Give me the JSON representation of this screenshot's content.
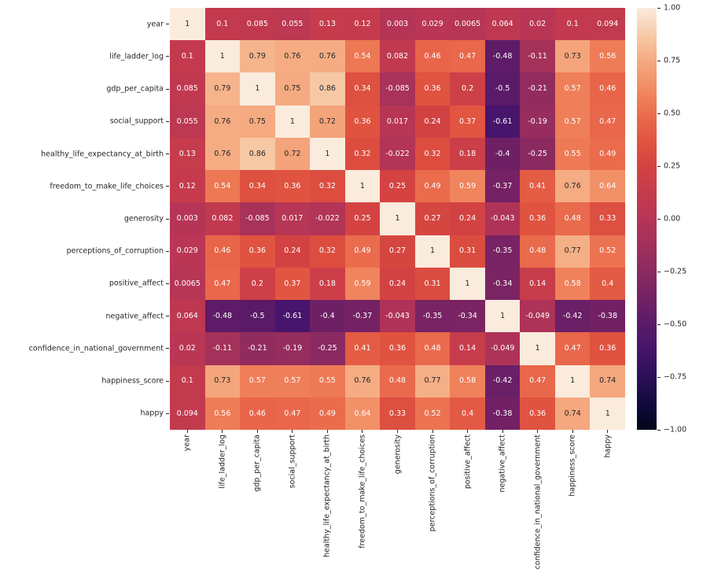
{
  "figure": {
    "background": "#FFFFFF"
  },
  "chart_data": {
    "type": "heatmap",
    "title": "",
    "description": "Correlation matrix heatmap with annotated correlation coefficients",
    "variables": [
      "year",
      "life_ladder_log",
      "gdp_per_capita",
      "social_support",
      "healthy_life_expectancy_at_birth",
      "freedom_to_make_life_choices",
      "generosity",
      "perceptions_of_corruption",
      "positive_affect",
      "negative_affect",
      "confidence_in_national_government",
      "happiness_score",
      "happy"
    ],
    "matrix": [
      [
        "1",
        "0.1",
        "0.085",
        "0.055",
        "0.13",
        "0.12",
        "0.003",
        "0.029",
        "0.0065",
        "0.064",
        "0.02",
        "0.1",
        "0.094"
      ],
      [
        "0.1",
        "1",
        "0.79",
        "0.76",
        "0.76",
        "0.54",
        "0.082",
        "0.46",
        "0.47",
        "-0.48",
        "-0.11",
        "0.73",
        "0.56"
      ],
      [
        "0.085",
        "0.79",
        "1",
        "0.75",
        "0.86",
        "0.34",
        "-0.085",
        "0.36",
        "0.2",
        "-0.5",
        "-0.21",
        "0.57",
        "0.46"
      ],
      [
        "0.055",
        "0.76",
        "0.75",
        "1",
        "0.72",
        "0.36",
        "0.017",
        "0.24",
        "0.37",
        "-0.61",
        "-0.19",
        "0.57",
        "0.47"
      ],
      [
        "0.13",
        "0.76",
        "0.86",
        "0.72",
        "1",
        "0.32",
        "-0.022",
        "0.32",
        "0.18",
        "-0.4",
        "-0.25",
        "0.55",
        "0.49"
      ],
      [
        "0.12",
        "0.54",
        "0.34",
        "0.36",
        "0.32",
        "1",
        "0.25",
        "0.49",
        "0.59",
        "-0.37",
        "0.41",
        "0.76",
        "0.64"
      ],
      [
        "0.003",
        "0.082",
        "-0.085",
        "0.017",
        "-0.022",
        "0.25",
        "1",
        "0.27",
        "0.24",
        "-0.043",
        "0.36",
        "0.48",
        "0.33"
      ],
      [
        "0.029",
        "0.46",
        "0.36",
        "0.24",
        "0.32",
        "0.49",
        "0.27",
        "1",
        "0.31",
        "-0.35",
        "0.48",
        "0.77",
        "0.52"
      ],
      [
        "0.0065",
        "0.47",
        "0.2",
        "0.37",
        "0.18",
        "0.59",
        "0.24",
        "0.31",
        "1",
        "-0.34",
        "0.14",
        "0.58",
        "0.4"
      ],
      [
        "0.064",
        "-0.48",
        "-0.5",
        "-0.61",
        "-0.4",
        "-0.37",
        "-0.043",
        "-0.35",
        "-0.34",
        "1",
        "-0.049",
        "-0.42",
        "-0.38"
      ],
      [
        "0.02",
        "-0.11",
        "-0.21",
        "-0.19",
        "-0.25",
        "0.41",
        "0.36",
        "0.48",
        "0.14",
        "-0.049",
        "1",
        "0.47",
        "0.36"
      ],
      [
        "0.1",
        "0.73",
        "0.57",
        "0.57",
        "0.55",
        "0.76",
        "0.48",
        "0.77",
        "0.58",
        "-0.42",
        "0.47",
        "1",
        "0.74"
      ],
      [
        "0.094",
        "0.56",
        "0.46",
        "0.47",
        "0.49",
        "0.64",
        "0.33",
        "0.52",
        "0.4",
        "-0.38",
        "0.36",
        "0.74",
        "1"
      ]
    ],
    "vmin": -1,
    "vmax": 1,
    "colormap": {
      "name": "rocket",
      "stops": [
        [
          0.0,
          "#03051A"
        ],
        [
          0.06,
          "#10093C"
        ],
        [
          0.125,
          "#2C1059"
        ],
        [
          0.195,
          "#47156B"
        ],
        [
          0.25,
          "#5A1A68"
        ],
        [
          0.3,
          "#6E2065"
        ],
        [
          0.33,
          "#7A2463"
        ],
        [
          0.375,
          "#8B2A61"
        ],
        [
          0.445,
          "#A4315A"
        ],
        [
          0.5,
          "#B63556"
        ],
        [
          0.55,
          "#C33A4E"
        ],
        [
          0.6,
          "#CE4047"
        ],
        [
          0.625,
          "#D44341"
        ],
        [
          0.68,
          "#E05340"
        ],
        [
          0.73,
          "#E86549"
        ],
        [
          0.775,
          "#EE7A55"
        ],
        [
          0.82,
          "#F29067"
        ],
        [
          0.88,
          "#F5AC83"
        ],
        [
          0.93,
          "#F7C8A4"
        ],
        [
          1.0,
          "#FAEBDD"
        ]
      ]
    },
    "annotation_text_colors": {
      "dark": "#262626",
      "light": "#FFFFFF"
    },
    "axis_label_color": "#262626",
    "colorbar": {
      "position": "right",
      "ticks": [
        {
          "value": 1.0,
          "label": "1.00"
        },
        {
          "value": 0.75,
          "label": "0.75"
        },
        {
          "value": 0.5,
          "label": "0.50"
        },
        {
          "value": 0.25,
          "label": "0.25"
        },
        {
          "value": 0.0,
          "label": "0.00"
        },
        {
          "value": -0.25,
          "label": "−0.25"
        },
        {
          "value": -0.5,
          "label": "−0.50"
        },
        {
          "value": -0.75,
          "label": "−0.75"
        },
        {
          "value": -1.0,
          "label": "−1.00"
        }
      ]
    },
    "grid": false,
    "legend": false
  }
}
